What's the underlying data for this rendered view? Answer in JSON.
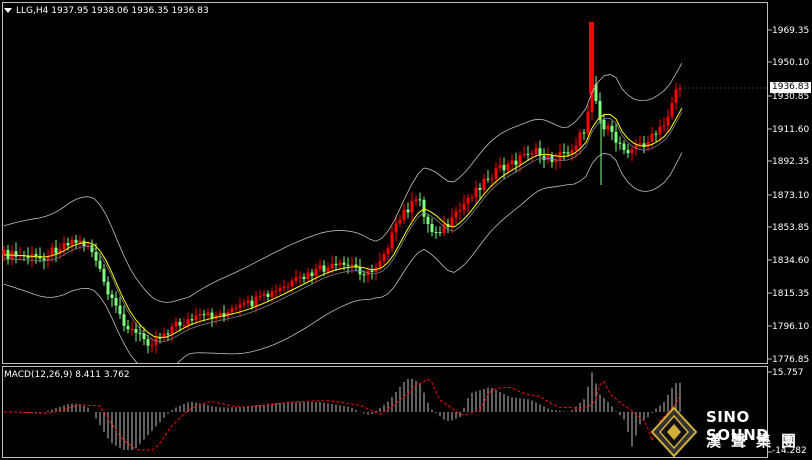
{
  "main": {
    "header": "LLG,H4  1937.95 1938.06 1936.35 1936.83",
    "current_price": "1936.83",
    "price_levels": [
      "1969.35",
      "1950.10",
      "1930.85",
      "1911.60",
      "1892.35",
      "1873.10",
      "1853.85",
      "1834.60",
      "1815.35",
      "1796.10",
      "1776.85"
    ],
    "colors": {
      "bull": "#ff0000",
      "bear": "#7fff7f",
      "ma": "#ffff00",
      "bands": "#c0c0c0",
      "axis": "#c0c0c0",
      "bg": "#000000"
    }
  },
  "macd": {
    "header": "MACD(12,26,9) 8.411 3.762",
    "levels": [
      "15.757",
      "-14.282"
    ],
    "colors": {
      "histogram": "#c0c0c0",
      "signal": "#ff0000"
    }
  },
  "logo": {
    "name": "SINO SOUND",
    "cn": "漢聲集團"
  }
}
